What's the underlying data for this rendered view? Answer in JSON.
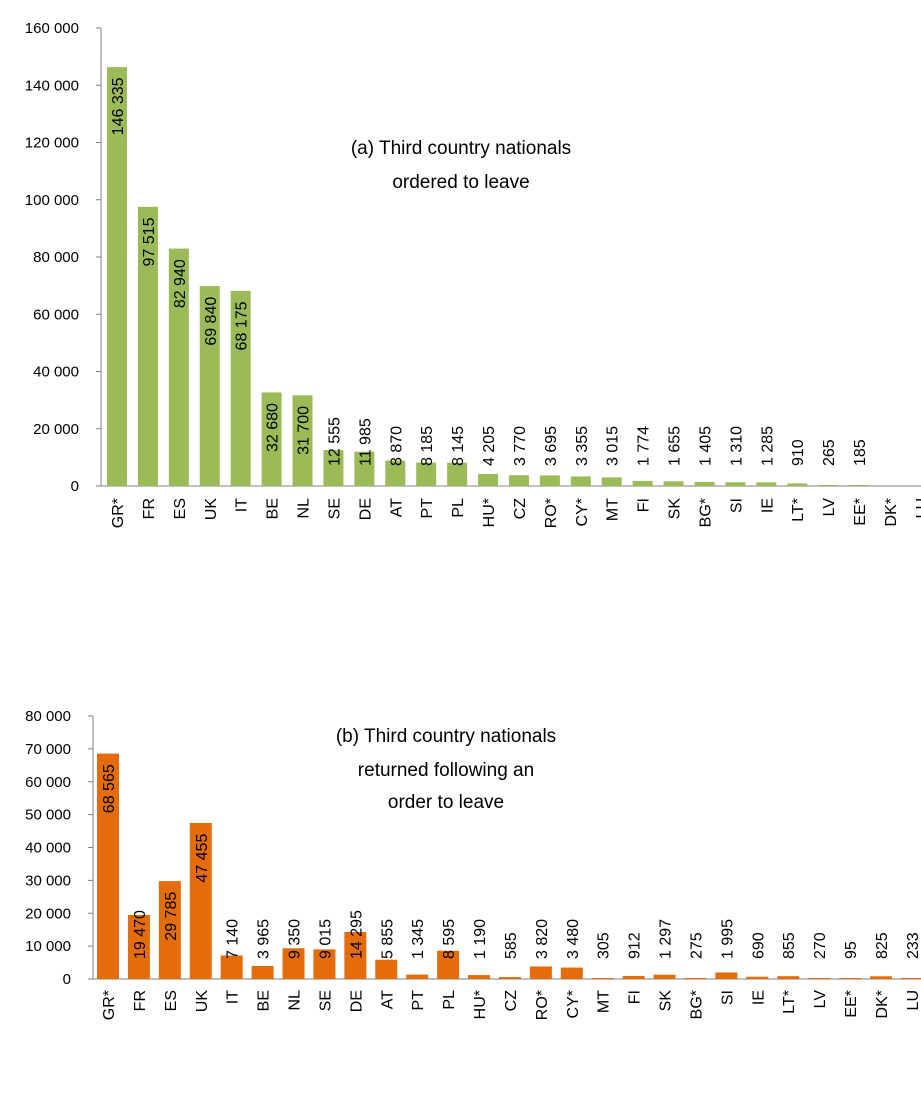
{
  "chart_data": [
    {
      "type": "bar",
      "title_lines": [
        "(a) Third country nationals",
        "ordered to leave"
      ],
      "color": "#9BBB59",
      "ylim": [
        0,
        160000
      ],
      "yticks": [
        "0",
        "20 000",
        "40 000",
        "60 000",
        "80 000",
        "100 000",
        "120 000",
        "140 000",
        "160 000"
      ],
      "grid": false,
      "categories": [
        "GR*",
        "FR",
        "ES",
        "UK",
        "IT",
        "BE",
        "NL",
        "SE",
        "DE",
        "AT",
        "PT",
        "PL",
        "HU*",
        "CZ",
        "RO*",
        "CY*",
        "MT",
        "FI",
        "SK",
        "BG*",
        "SI",
        "IE",
        "LT*",
        "LV",
        "EE*",
        "DK*",
        "LU"
      ],
      "values": [
        146335,
        97515,
        82940,
        69840,
        68175,
        32680,
        31700,
        12555,
        11985,
        8870,
        8185,
        8145,
        4205,
        3770,
        3695,
        3355,
        3015,
        1774,
        1655,
        1405,
        1310,
        1285,
        910,
        265,
        185,
        null,
        null
      ],
      "data_labels": [
        "146 335",
        "97 515",
        "82 940",
        "69 840",
        "68 175",
        "32 680",
        "31 700",
        "12 555",
        "11 985",
        "8 870",
        "8 185",
        "8 145",
        "4 205",
        "3 770",
        "3 695",
        "3 355",
        "3 015",
        "1 774",
        "1 655",
        "1 405",
        "1 310",
        "1 285",
        "910",
        "265",
        "185",
        "",
        ""
      ]
    },
    {
      "type": "bar",
      "title_lines": [
        "(b)  Third country nationals",
        "returned following an",
        "order to leave"
      ],
      "color": "#E46C0A",
      "ylim": [
        0,
        80000
      ],
      "yticks": [
        "0",
        "10 000",
        "20 000",
        "30 000",
        "40 000",
        "50 000",
        "60 000",
        "70 000",
        "80 000"
      ],
      "grid": false,
      "categories": [
        "GR*",
        "FR",
        "ES",
        "UK",
        "IT",
        "BE",
        "NL",
        "SE",
        "DE",
        "AT",
        "PT",
        "PL",
        "HU*",
        "CZ",
        "RO*",
        "CY*",
        "MT",
        "FI",
        "SK",
        "BG*",
        "SI",
        "IE",
        "LT*",
        "LV",
        "EE*",
        "DK*",
        "LU"
      ],
      "values": [
        68565,
        19470,
        29785,
        47455,
        7140,
        3965,
        9350,
        9015,
        14295,
        5855,
        1345,
        8595,
        1190,
        585,
        3820,
        3480,
        305,
        912,
        1297,
        275,
        1995,
        690,
        855,
        270,
        95,
        825,
        233
      ],
      "data_labels": [
        "68 565",
        "19 470",
        "29 785",
        "47 455",
        "7 140",
        "3 965",
        "9 350",
        "9 015",
        "14 295",
        "5 855",
        "1 345",
        "8 595",
        "1 190",
        "585",
        "3 820",
        "3 480",
        "305",
        "912",
        "1 297",
        "275",
        "1 995",
        "690",
        "855",
        "270",
        "95",
        "825",
        "233"
      ]
    }
  ]
}
